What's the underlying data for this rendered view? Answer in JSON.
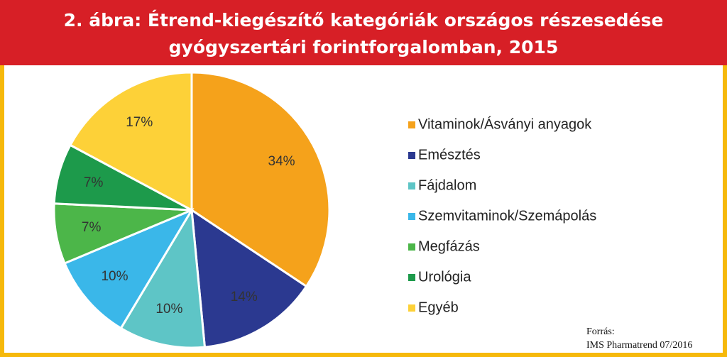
{
  "chart_data": {
    "type": "pie",
    "title": [
      "2. ábra: Étrend-kiegészítő kategóriák országos részesedése",
      "gyógyszertári forintforgalomban, 2015"
    ],
    "categories": [
      "Vitaminok/Ásványi anyagok",
      "Emésztés",
      "Fájdalom",
      "Szemvitaminok/Szemápolás",
      "Megfázás",
      "Urológia",
      "Egyéb"
    ],
    "values": [
      34,
      14,
      10,
      10,
      7,
      7,
      17
    ],
    "value_labels": [
      "34%",
      "14%",
      "10%",
      "10%",
      "7%",
      "7%",
      "17%"
    ],
    "colors": [
      "#f5a21b",
      "#2b3990",
      "#5ec5c6",
      "#3ab7e9",
      "#4cb649",
      "#1d9a4b",
      "#fdd138"
    ],
    "legend": "right",
    "source": [
      "Forrás:",
      "IMS Pharmatrend 07/2016"
    ]
  }
}
